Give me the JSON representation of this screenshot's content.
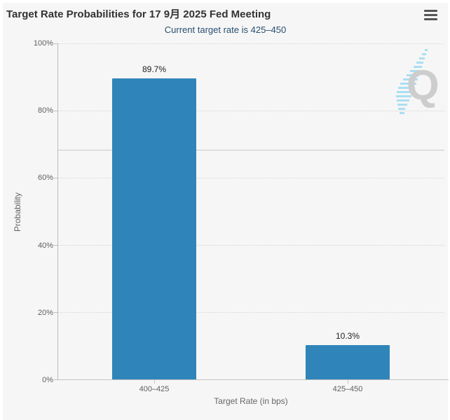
{
  "header": {
    "title": "Target Rate Probabilities for 17 9月 2025 Fed Meeting",
    "subtitle": "Current target rate is 425–450"
  },
  "menu": {
    "icon_name": "hamburger-menu-icon"
  },
  "watermark_letter": "Q",
  "chart_data": {
    "type": "bar",
    "title": "Target Rate Probabilities for 17 9月 2025 Fed Meeting",
    "subtitle": "Current target rate is 425–450",
    "categories": [
      "400–425",
      "425–450"
    ],
    "values": [
      89.7,
      10.3
    ],
    "data_labels": [
      "89.7%",
      "10.3%"
    ],
    "xlabel": "Target Rate (in bps)",
    "ylabel": "Probability",
    "ylim": [
      0,
      100
    ],
    "ytick_labels": [
      "0%",
      "20%",
      "40%",
      "60%",
      "80%",
      "100%"
    ],
    "grid": "dotted horizontal, major every 20%",
    "reference_line_y": 68.3,
    "legend": "none",
    "bar_color": "#2f85ba",
    "background_color": "#f6f6f6",
    "subtitle_color": "#274e72"
  }
}
